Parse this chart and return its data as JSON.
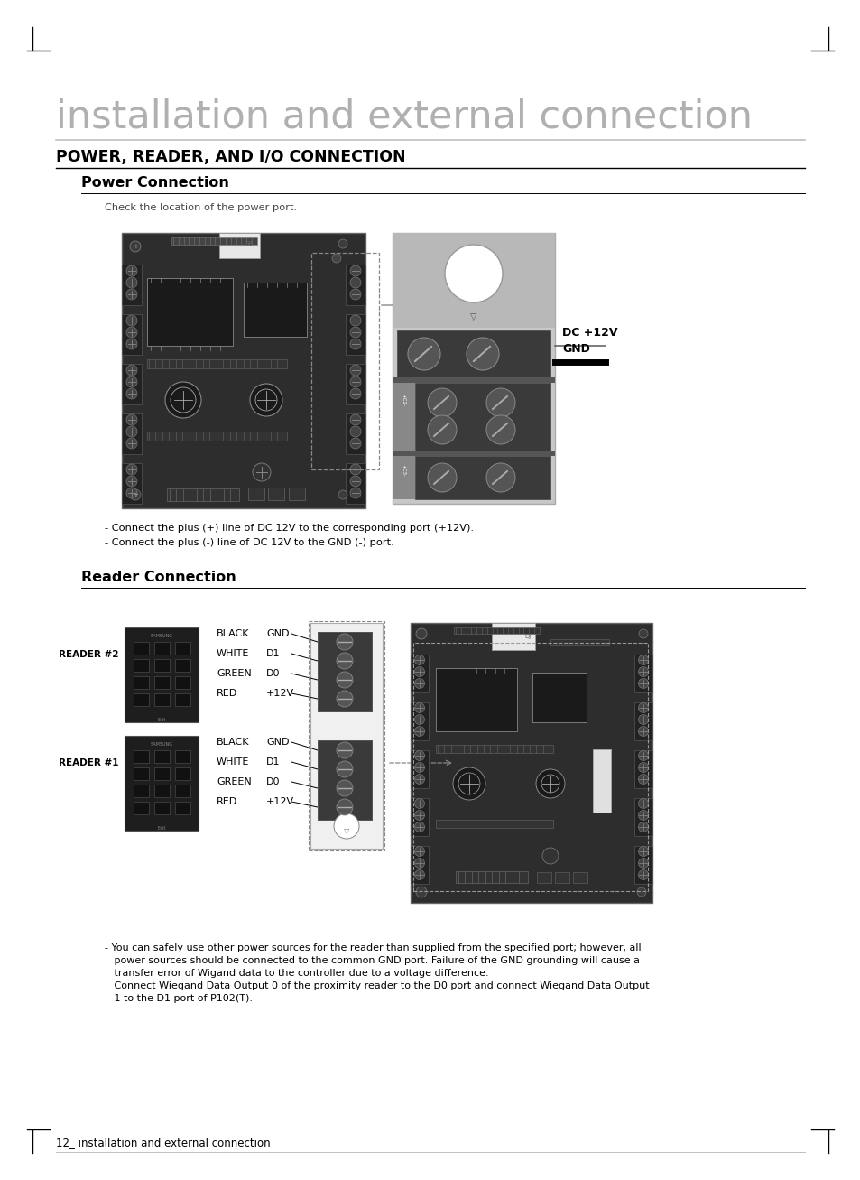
{
  "bg_color": "#ffffff",
  "title_text": "installation and external connection",
  "section_title": "POWER, READER, AND I/O CONNECTION",
  "subsection1": "Power Connection",
  "subsection1_desc": "Check the location of the power port.",
  "power_note1": "- Connect the plus (+) line of DC 12V to the corresponding port (+12V).",
  "power_note2": "- Connect the plus (-) line of DC 12V to the GND (-) port.",
  "dc_label": "DC +12V",
  "gnd_label": "GND",
  "subsection2": "Reader Connection",
  "reader2_label": "READER #2",
  "reader1_label": "READER #1",
  "reader_rows": [
    [
      "BLACK",
      "GND"
    ],
    [
      "WHITE",
      "D1"
    ],
    [
      "GREEN",
      "D0"
    ],
    [
      "RED",
      "+12V"
    ]
  ],
  "reader_note1": "- You can safely use other power sources for the reader than supplied from the specified port; however, all",
  "reader_note2": "   power sources should be connected to the common GND port. Failure of the GND grounding will cause a",
  "reader_note3": "   transfer error of Wigand data to the controller due to a voltage difference.",
  "reader_note4": "   Connect Wiegand Data Output 0 of the proximity reader to the D0 port and connect Wiegand Data Output",
  "reader_note5": "   1 to the D1 port of P102(T).",
  "footer_text": "12_ installation and external connection",
  "board_dark": "#2d2d2d",
  "board_mid": "#3d3d3d",
  "board_light": "#555555",
  "connector_dark": "#1a1a1a",
  "screw_color": "#666666",
  "screw_edge": "#888888",
  "zoom_bg": "#b0b0b0"
}
